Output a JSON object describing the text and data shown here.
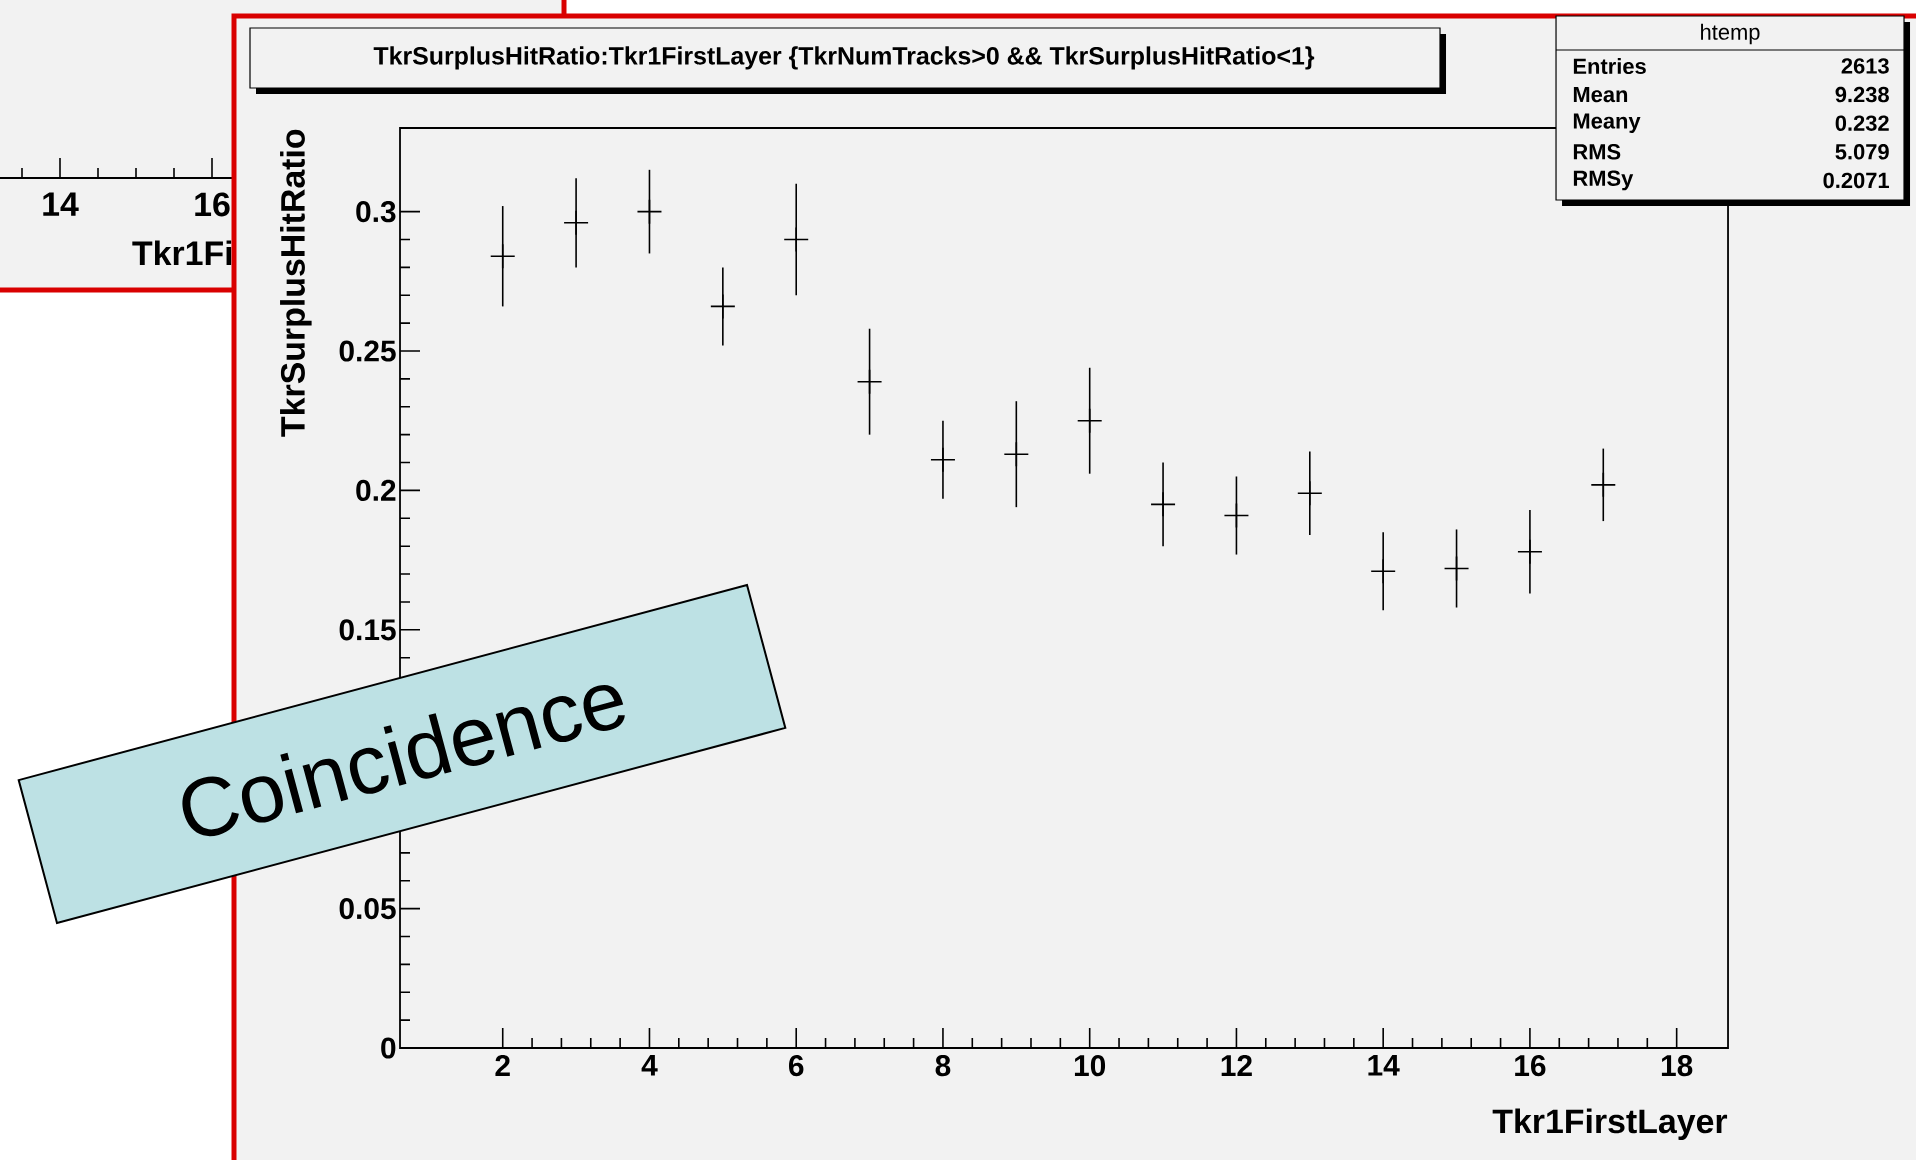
{
  "chart_data": [
    {
      "type": "other",
      "annotations": [
        "14",
        "16",
        "Tkr1Fi"
      ]
    },
    {
      "type": "scatter",
      "title": "TkrSurplusHitRatio:Tkr1FirstLayer {TkrNumTracks>0 && TkrSurplusHitRatio<1}",
      "xlabel": "Tkr1FirstLayer",
      "ylabel": "TkrSurplusHitRatio",
      "xlim": [
        0.6,
        18.7
      ],
      "ylim": [
        0,
        0.33
      ],
      "xticks": [
        2,
        4,
        6,
        8,
        10,
        12,
        14,
        16,
        18
      ],
      "yticks": [
        0,
        0.05,
        {
          "value": 0.1,
          "label": null
        },
        0.15,
        0.2,
        0.25,
        0.3
      ],
      "x": [
        2,
        3,
        4,
        5,
        6,
        7,
        8,
        9,
        10,
        11,
        12,
        13,
        14,
        15,
        16,
        17
      ],
      "values": [
        0.284,
        0.296,
        0.3,
        0.266,
        0.29,
        0.239,
        0.211,
        0.213,
        0.225,
        0.195,
        0.191,
        0.199,
        0.171,
        0.172,
        0.178,
        0.202
      ],
      "errors": [
        0.018,
        0.016,
        0.015,
        0.014,
        0.02,
        0.019,
        0.014,
        0.019,
        0.019,
        0.015,
        0.014,
        0.015,
        0.014,
        0.014,
        0.015,
        0.013
      ],
      "color": "#000000",
      "marker": "cross",
      "annotations": [
        "Coincidence",
        "htemp",
        "Entries",
        "2613",
        "Mean",
        "9.238",
        "Meany",
        "0.232",
        "RMS",
        "5.079",
        "RMSy",
        "0.2071"
      ]
    }
  ]
}
